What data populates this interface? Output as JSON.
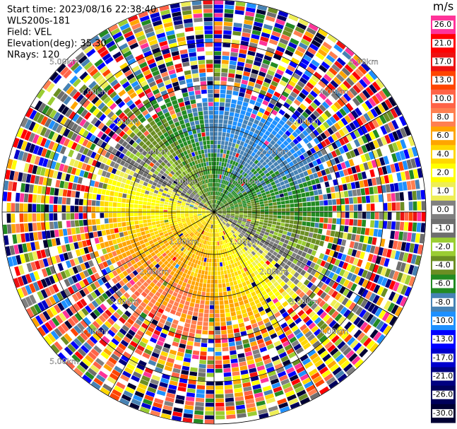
{
  "header": {
    "lines": [
      "Start time: 2023/08/16 22:38:40",
      "WLS200s-181",
      "Field: VEL",
      "Elevation(deg): 35.30",
      "NRays: 120"
    ]
  },
  "colorbar": {
    "unit": "m/s",
    "levels": [
      {
        "label": "26.0",
        "color": "#ff3399"
      },
      {
        "label": "21.0",
        "color": "#ff0000"
      },
      {
        "label": "17.0",
        "color": "#ee1111"
      },
      {
        "label": "13.0",
        "color": "#ff4500"
      },
      {
        "label": "10.0",
        "color": "#ff6347"
      },
      {
        "label": "8.0",
        "color": "#ff7f50"
      },
      {
        "label": "6.0",
        "color": "#ffa500"
      },
      {
        "label": "4.0",
        "color": "#ffd700"
      },
      {
        "label": "2.0",
        "color": "#ffff00"
      },
      {
        "label": "1.0",
        "color": "#eeee55"
      },
      {
        "label": "0.0",
        "color": "#808080"
      },
      {
        "label": "-1.0",
        "color": "#6e6e6e"
      },
      {
        "label": "-2.0",
        "color": "#9acd32"
      },
      {
        "label": "-4.0",
        "color": "#6b8e23"
      },
      {
        "label": "-6.0",
        "color": "#228b22"
      },
      {
        "label": "-8.0",
        "color": "#4682b4"
      },
      {
        "label": "-10.0",
        "color": "#1e90ff"
      },
      {
        "label": "-13.0",
        "color": "#0000ff"
      },
      {
        "label": "-17.0",
        "color": "#0000cd"
      },
      {
        "label": "-21.0",
        "color": "#000080"
      },
      {
        "label": "-26.0",
        "color": "#00005a"
      },
      {
        "label": "-30.0",
        "color": "#000033"
      }
    ]
  },
  "range_rings": [
    "1.00km",
    "2.00km",
    "3.00km",
    "4.00km",
    "5.00km"
  ]
}
